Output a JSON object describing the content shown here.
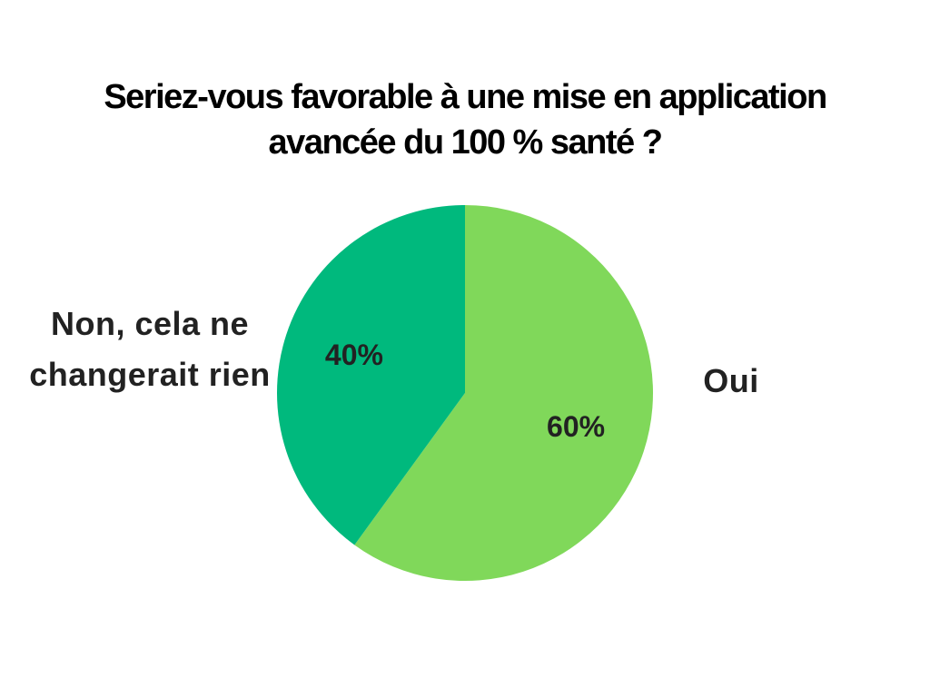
{
  "chart_data": {
    "type": "pie",
    "title": "Seriez-vous favorable à une mise en application avancée du 100 % santé ?",
    "categories": [
      "Oui",
      "Non, cela ne changerait rien"
    ],
    "values": [
      60,
      40
    ],
    "value_labels": [
      "60%",
      "40%"
    ],
    "colors": [
      "#80d85a",
      "#00b97d"
    ]
  }
}
